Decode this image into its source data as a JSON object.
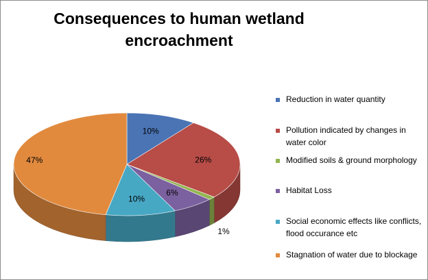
{
  "chart_data": {
    "type": "pie",
    "title": "Consequences to human wetland encroachment",
    "title_lines": [
      "Consequences to human wetland",
      "encroachment"
    ],
    "style": "3d",
    "legend_position": "right",
    "slices": [
      {
        "label": "Reduction in water quantity",
        "value": 10,
        "display": "10%",
        "color": "#4a74b4"
      },
      {
        "label": "Pollution indicated by changes in water color",
        "value": 26,
        "display": "26%",
        "color": "#b84c47"
      },
      {
        "label": "Modified soils & ground morphology",
        "value": 1,
        "display": "",
        "color": "#93b550"
      },
      {
        "label": "Habitat Loss",
        "value": 6,
        "display": "6%",
        "color": "#7c61a0"
      },
      {
        "label": "Social economic effects like conflicts, flood occurance etc",
        "value": 10,
        "display": "10%",
        "color": "#47a8c4"
      },
      {
        "label": "Stagnation of water due to blockage",
        "value": 47,
        "display": "47%",
        "color": "#e18a3e"
      }
    ],
    "extra_labels": [
      {
        "text": "1%"
      }
    ]
  }
}
